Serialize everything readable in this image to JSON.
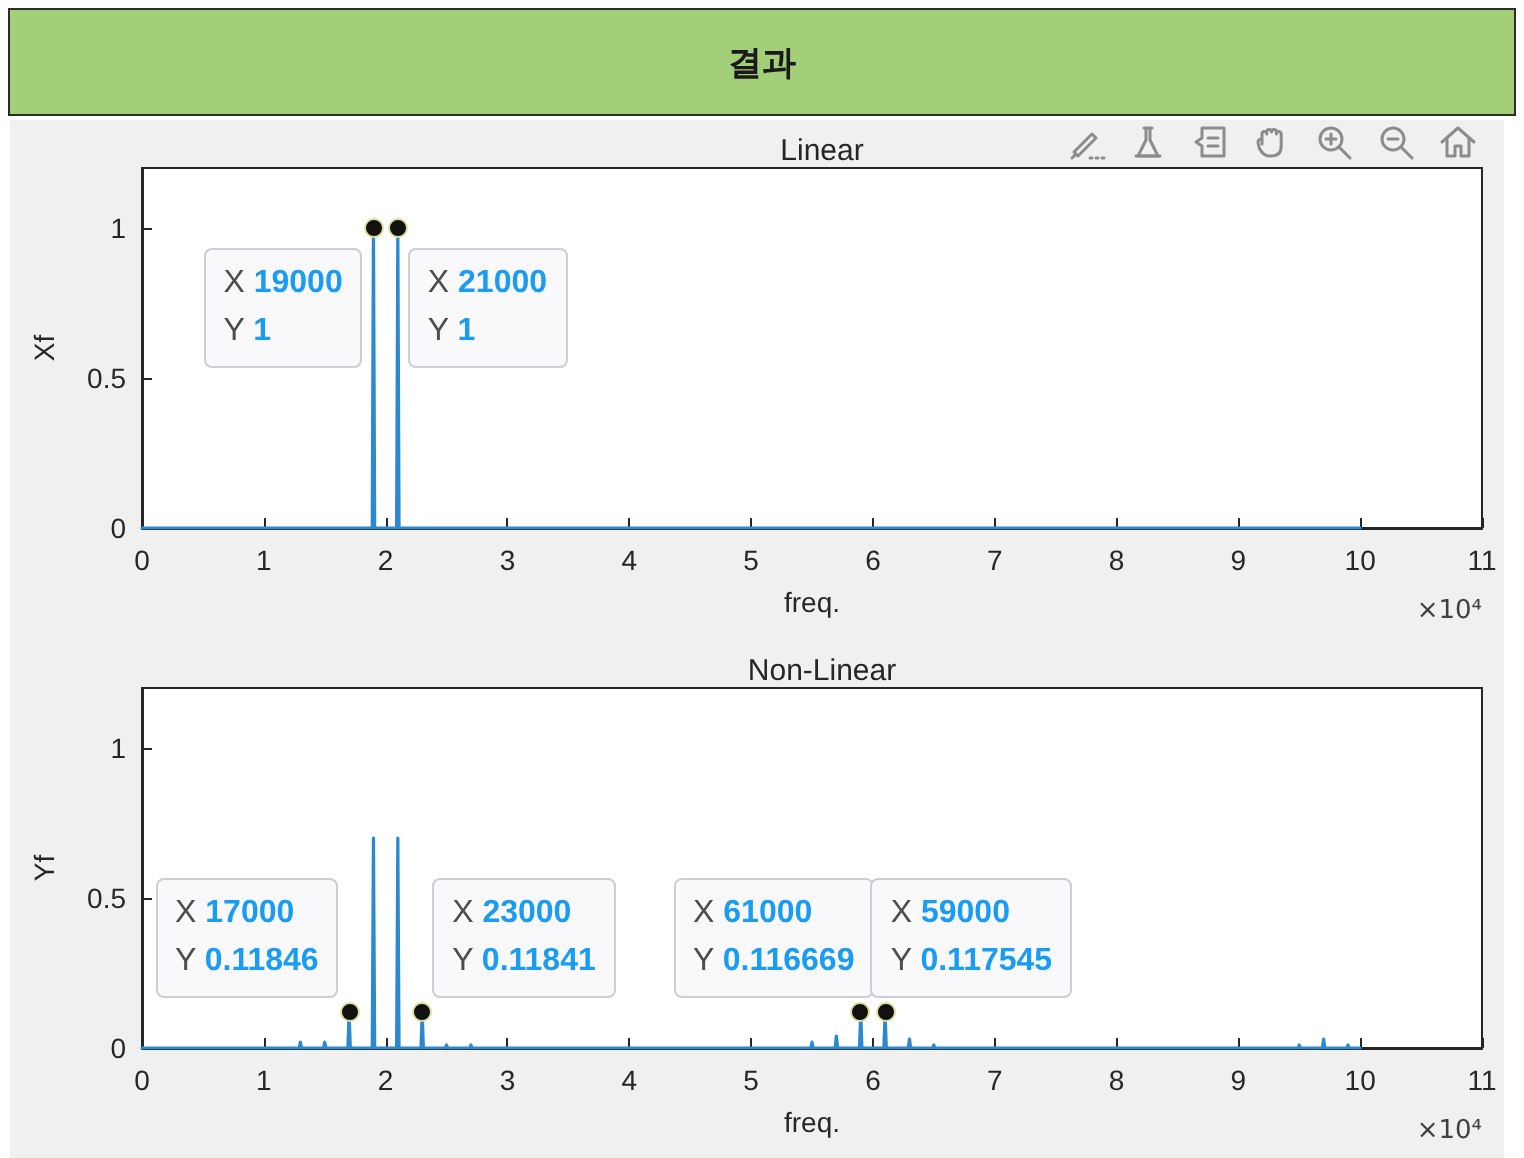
{
  "chart_data": [
    {
      "type": "line",
      "title": "결과",
      "subtitle": "Linear",
      "xlabel": "freq.",
      "ylabel": "Xf",
      "line_style": "solid",
      "color": "#2a89d0",
      "x": [
        0,
        1.89,
        1.9,
        1.91,
        2.09,
        2.1,
        2.11,
        10
      ],
      "values": [
        0,
        0,
        1,
        0,
        0,
        1,
        0,
        0
      ],
      "xlim": [
        0,
        11
      ],
      "ylim": [
        0,
        1.2
      ],
      "xticks": [
        0,
        1,
        2,
        3,
        4,
        5,
        6,
        7,
        8,
        9,
        10,
        11
      ],
      "yticks": [
        0,
        0.5,
        1
      ],
      "annotations": [
        "×10⁴",
        {
          "text": "X 19000\nY 1",
          "x": 1.9,
          "y": 1
        },
        {
          "text": "X 21000\nY 1",
          "x": 2.1,
          "y": 1
        }
      ]
    },
    {
      "type": "line",
      "title": "Non-Linear",
      "xlabel": "freq.",
      "ylabel": "Yf",
      "line_style": "solid",
      "color": "#2a89d0",
      "x": [
        0,
        1.29,
        1.3,
        1.31,
        1.49,
        1.5,
        1.51,
        1.69,
        1.7,
        1.71,
        1.89,
        1.9,
        1.91,
        2.09,
        2.1,
        2.11,
        2.29,
        2.3,
        2.31,
        2.49,
        2.5,
        2.51,
        2.69,
        2.7,
        2.71,
        5.49,
        5.5,
        5.51,
        5.69,
        5.7,
        5.71,
        5.89,
        5.9,
        5.91,
        6.09,
        6.1,
        6.11,
        6.29,
        6.3,
        6.31,
        6.49,
        6.5,
        6.51,
        9.49,
        9.5,
        9.51,
        9.69,
        9.7,
        9.71,
        9.89,
        9.9,
        9.91,
        10
      ],
      "values": [
        0,
        0,
        0.02,
        0,
        0,
        0.02,
        0,
        0,
        0.11846,
        0,
        0,
        0.7,
        0,
        0,
        0.7,
        0,
        0,
        0.11841,
        0,
        0,
        0.01,
        0,
        0,
        0.01,
        0,
        0,
        0.02,
        0,
        0,
        0.04,
        0,
        0,
        0.117545,
        0,
        0,
        0.116669,
        0,
        0,
        0.03,
        0,
        0,
        0.01,
        0,
        0,
        0.01,
        0,
        0,
        0.03,
        0,
        0,
        0.01,
        0,
        0
      ],
      "xlim": [
        0,
        11
      ],
      "ylim": [
        0,
        1.2
      ],
      "xticks": [
        0,
        1,
        2,
        3,
        4,
        5,
        6,
        7,
        8,
        9,
        10,
        11
      ],
      "yticks": [
        0,
        0.5,
        1
      ],
      "annotations": [
        "×10⁴",
        {
          "text": "X 17000\nY 0.11846",
          "x": 1.7,
          "y": 0.11846
        },
        {
          "text": "X 23000\nY 0.11841",
          "x": 2.3,
          "y": 0.11841
        },
        {
          "text": "X 61000\nY 0.116669",
          "x": 6.1,
          "y": 0.116669
        },
        {
          "text": "X 59000\nY 0.117545",
          "x": 5.9,
          "y": 0.117545
        }
      ]
    }
  ]
}
